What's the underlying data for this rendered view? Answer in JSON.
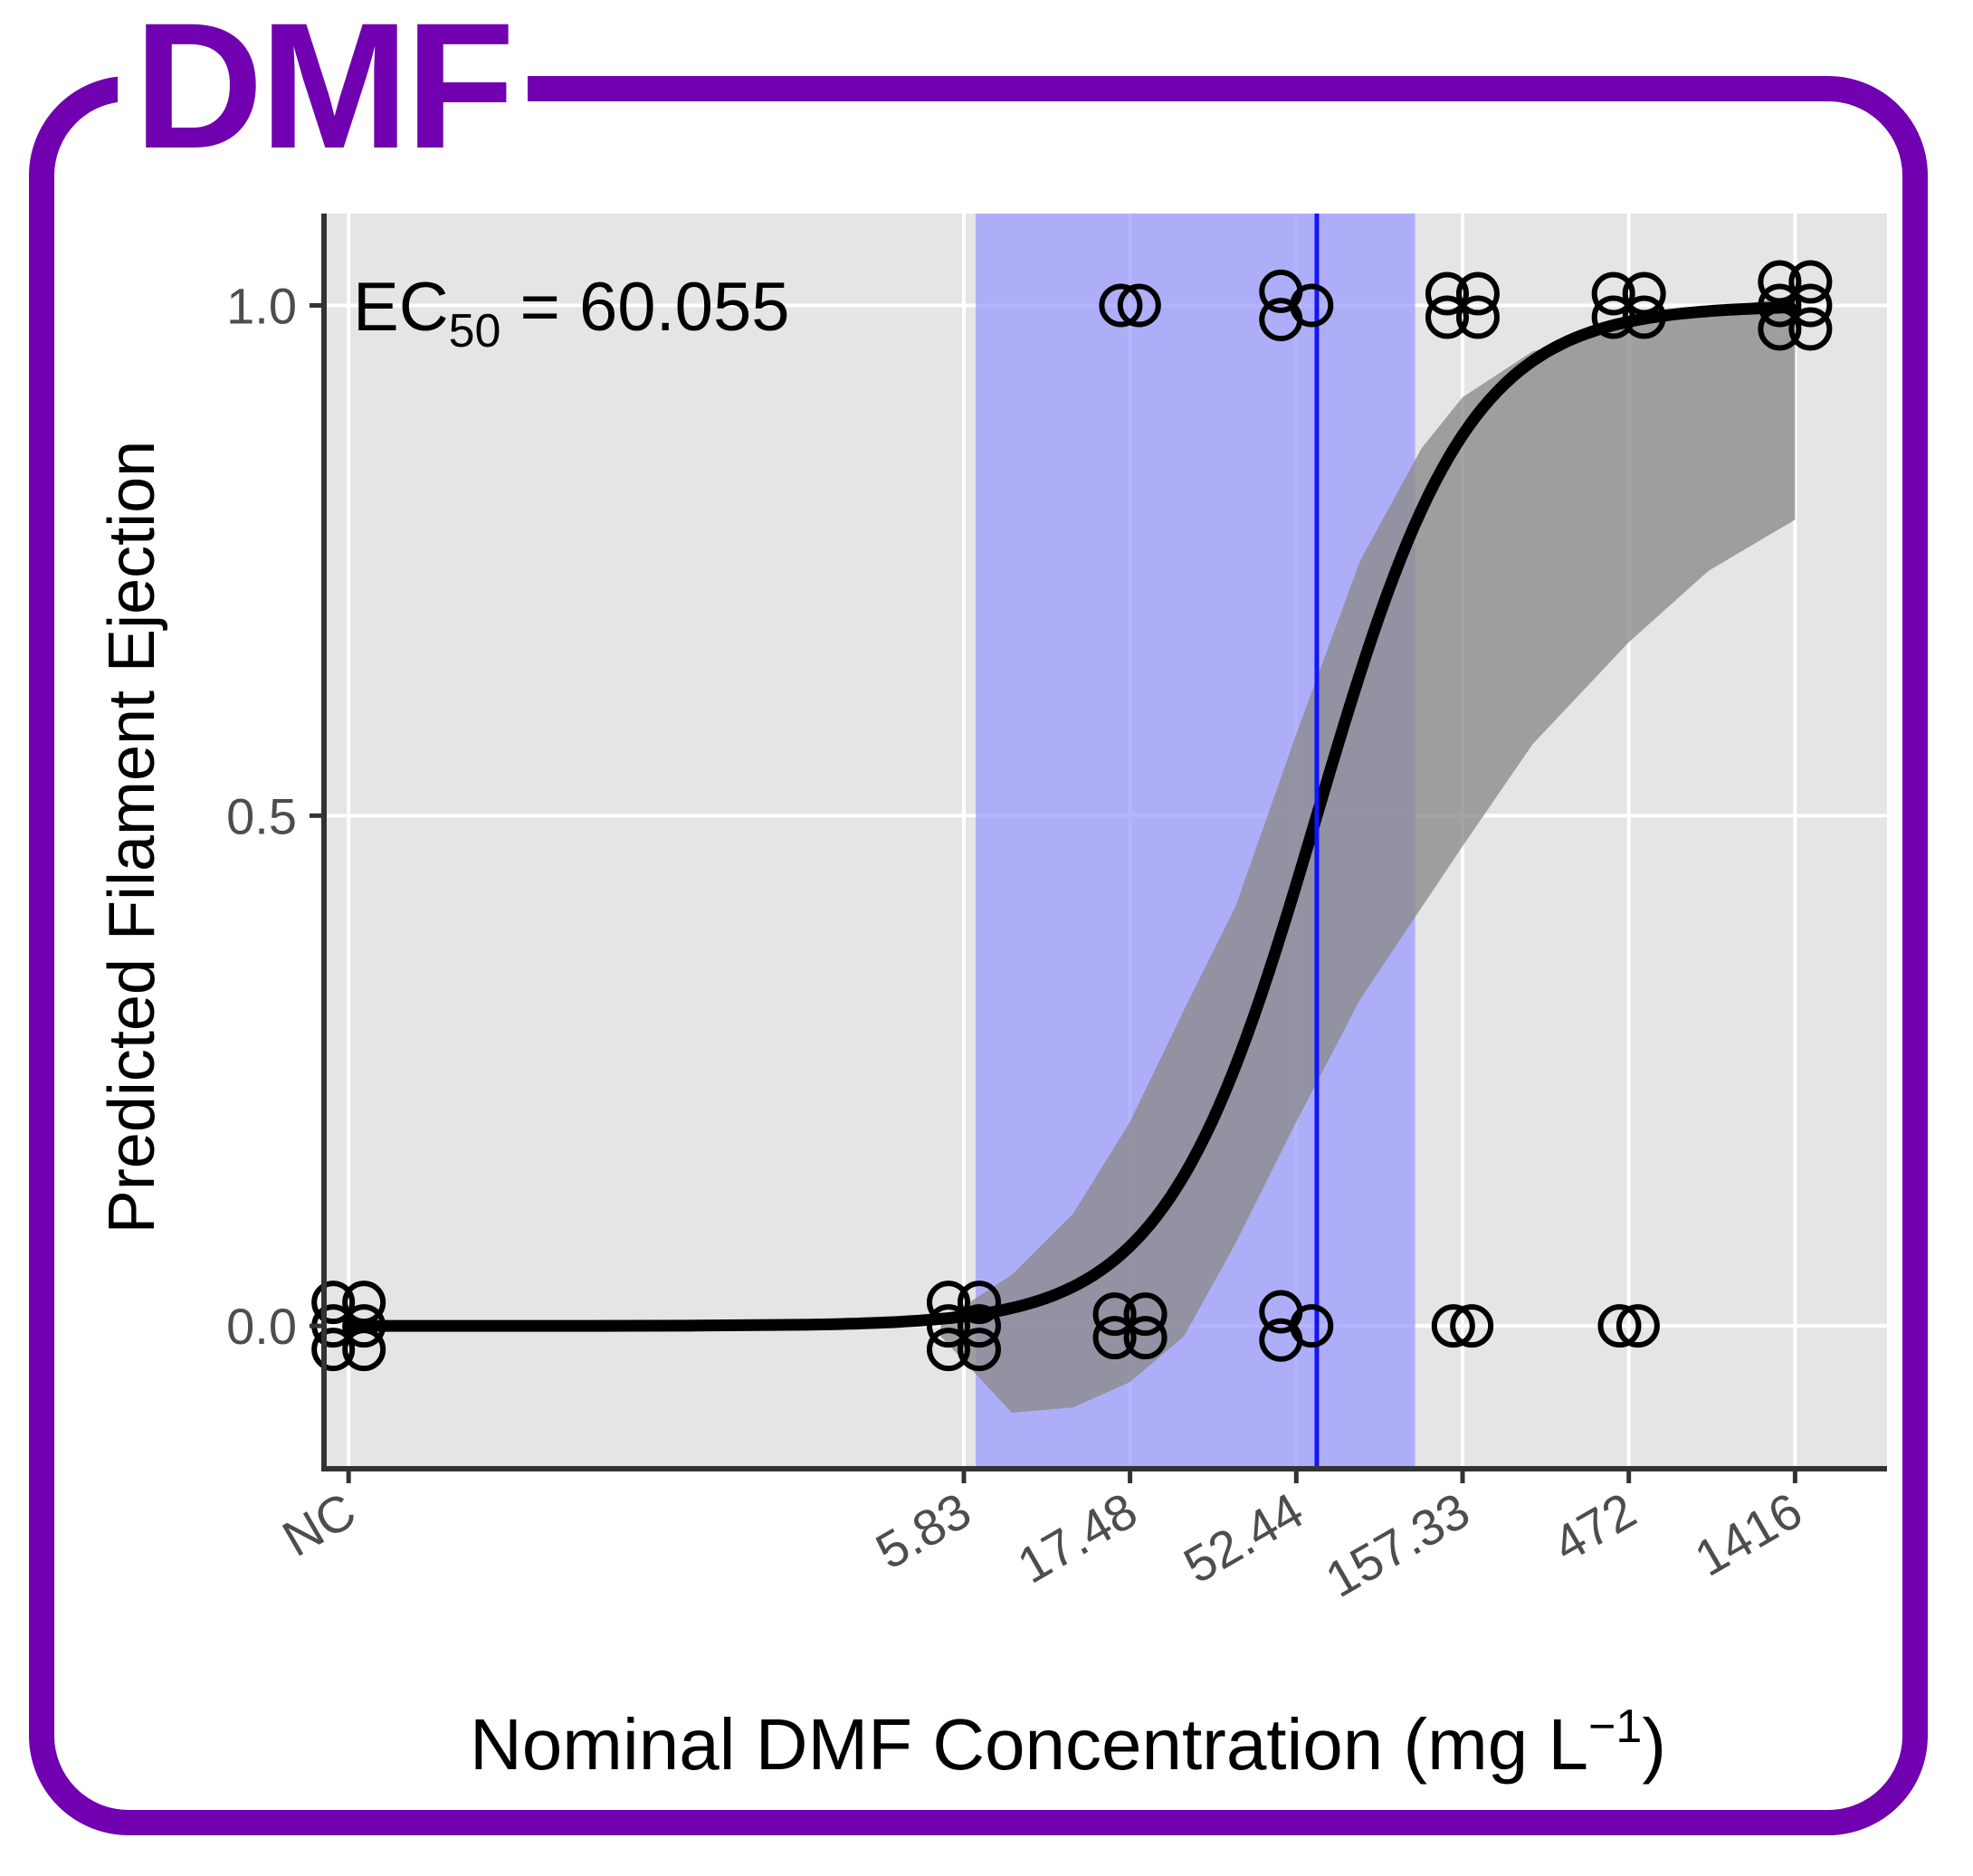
{
  "panel_label": "DMF",
  "colors": {
    "frame": "#7000b0",
    "panel_bg": "#e5e5e5",
    "grid": "#ffffff",
    "ci_band": "#8a8a8a",
    "ec50_band": "#9898ff",
    "ec50_line": "#1414ff",
    "curve": "#000000",
    "points": "#000000"
  },
  "chart_data": {
    "type": "scatter",
    "title": "",
    "xlabel": "Nominal DMF Concentration (mg L",
    "xlabel_superscript": "−1",
    "xlabel_close": ")",
    "ylabel": "Predicted Filament Ejection",
    "x_scale": "log10",
    "x_ticks": [
      {
        "label": "NC",
        "pos": 0.1
      },
      {
        "label": "5.83",
        "pos": 5.83
      },
      {
        "label": "17.48",
        "pos": 17.48
      },
      {
        "label": "52.44",
        "pos": 52.44
      },
      {
        "label": "157.33",
        "pos": 157.33
      },
      {
        "label": "472",
        "pos": 472
      },
      {
        "label": "1416",
        "pos": 1416
      }
    ],
    "xlim": [
      0.085,
      2600
    ],
    "ylim": [
      -0.14,
      1.09
    ],
    "y_ticks": [
      0.0,
      0.5,
      1.0
    ],
    "y_tick_labels": [
      "0.0",
      "0.5",
      "1.0"
    ],
    "annotation": {
      "prefix": "EC",
      "subscript": "50",
      "suffix": " = 60.055"
    },
    "ec50": 60.055,
    "ec50_ci": [
      6.3,
      115
    ],
    "logistic_fit": {
      "ec50": 60.055,
      "hill_slope": 2.0
    },
    "ci_band": {
      "x": [
        5,
        8,
        12,
        17.48,
        25,
        35,
        52.44,
        80,
        120,
        157.33,
        250,
        472,
        800,
        1416
      ],
      "lower": [
        -0.01,
        -0.085,
        -0.08,
        -0.055,
        -0.01,
        0.08,
        0.2,
        0.32,
        0.41,
        0.47,
        0.57,
        0.67,
        0.74,
        0.79
      ],
      "upper": [
        0.005,
        0.05,
        0.11,
        0.2,
        0.31,
        0.41,
        0.58,
        0.75,
        0.86,
        0.91,
        0.955,
        0.98,
        0.995,
        1.01
      ]
    },
    "points": [
      {
        "x": 0.1,
        "y": 0.0,
        "n": 6
      },
      {
        "x": 5.83,
        "y": 0.0,
        "n": 6
      },
      {
        "x": 17.48,
        "y": 0.0,
        "n": 4
      },
      {
        "x": 17.48,
        "y": 1.0,
        "n": 2
      },
      {
        "x": 52.44,
        "y": 0.0,
        "n": 3
      },
      {
        "x": 52.44,
        "y": 1.0,
        "n": 3
      },
      {
        "x": 157.33,
        "y": 0.0,
        "n": 2
      },
      {
        "x": 157.33,
        "y": 1.0,
        "n": 4
      },
      {
        "x": 472,
        "y": 0.0,
        "n": 2
      },
      {
        "x": 472,
        "y": 1.0,
        "n": 4
      },
      {
        "x": 1416,
        "y": 1.0,
        "n": 6
      }
    ]
  }
}
